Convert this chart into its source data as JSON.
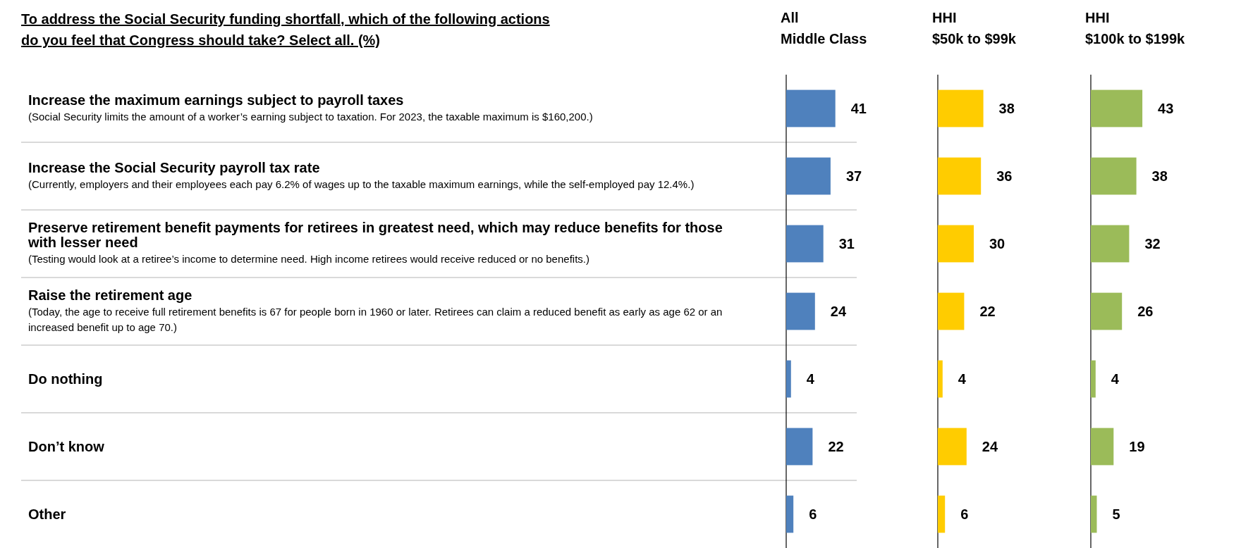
{
  "chart_data": [
    {
      "type": "other",
      "title": "To address the Social Security funding shortfall, which of the following actions do you feel that Congress should take? Select all. (%)"
    },
    {
      "type": "bar",
      "orientation": "horizontal",
      "title": "All\nMiddle Class",
      "data_labels": true,
      "grid": true,
      "categories": [
        "Increase the maximum earnings subject to payroll taxes\n(Social Security limits the amount of a worker’s earning subject to taxation. For 2023, the taxable maximum is $160,200.)",
        "Increase the Social Security payroll tax rate\n(Currently, employers and their employees each pay 6.2% of wages up to the taxable maximum earnings, while the self-employed pay 12.4%.)",
        "Preserve retirement benefit payments for retirees in greatest need, which may reduce benefits for those with lesser need\n(Testing would look at a retiree’s income to determine need. High income retirees would receive reduced or no benefits.)",
        "Raise the retirement age\n(Today, the age to receive full retirement benefits is 67 for people born in 1960 or later. Retirees can claim a reduced benefit as early as age 62 or an increased benefit up to age 70.)",
        "Do nothing",
        "Don’t know",
        "Other"
      ],
      "values": [
        41,
        37,
        31,
        24,
        4,
        22,
        6
      ],
      "color": "#4f81bd"
    },
    {
      "type": "bar",
      "orientation": "horizontal",
      "title": "HHI\n$50k to $99k",
      "data_labels": true,
      "categories": [
        null,
        null,
        null,
        null,
        null,
        null,
        null
      ],
      "values": [
        38,
        36,
        30,
        22,
        4,
        24,
        6
      ],
      "color": "#ffcc00"
    },
    {
      "type": "bar",
      "orientation": "horizontal",
      "title": "HHI\n$100k to $199k",
      "data_labels": true,
      "categories": [
        null,
        null,
        null,
        null,
        null,
        null,
        null
      ],
      "values": [
        43,
        38,
        32,
        26,
        4,
        19,
        5
      ],
      "color": "#9bbb59"
    }
  ]
}
